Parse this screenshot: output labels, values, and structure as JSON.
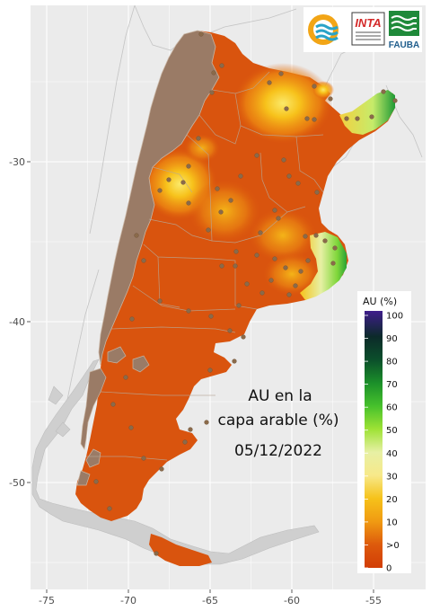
{
  "map": {
    "annotation": [
      "AU en la",
      "capa arable (%)",
      "05/12/2022"
    ],
    "axes": {
      "x_ticks": [
        "-75",
        "-70",
        "-65",
        "-60",
        "-55"
      ],
      "y_ticks": [
        "-30",
        "-40",
        "-50"
      ]
    },
    "background_color": "#ebebeb",
    "grid_color": "#ffffff"
  },
  "legend": {
    "title": "AU (%)",
    "labels": [
      "100",
      "90",
      "80",
      "70",
      "60",
      "50",
      "40",
      "30",
      "20",
      "10",
      ">0",
      "0"
    ],
    "colors": [
      "#3f1d8c",
      "#0c2a2a",
      "#0b4f2b",
      "#1b8f2a",
      "#46c12c",
      "#9ee235",
      "#e7f0a4",
      "#f7e98a",
      "#f6c21a",
      "#f09a12",
      "#dd5a0c",
      "#d23d06"
    ]
  },
  "logos": {
    "inta_label": "INTA",
    "fauba_label": "FAUBA"
  },
  "colors": {
    "dry": "#d9540e",
    "mountain": "#9a7b66",
    "neighbor_land": "#c8c8c8",
    "station": "#8a6a4a"
  },
  "chart_data": {
    "type": "heatmap",
    "title": "AU en la capa arable (%)",
    "date": "05/12/2022",
    "legend_title": "AU (%)",
    "scale_breaks": [
      "0",
      ">0",
      "10",
      "20",
      "30",
      "40",
      "50",
      "60",
      "70",
      "80",
      "90",
      "100"
    ],
    "x_ticks": [
      -75,
      -70,
      -65,
      -60,
      -55
    ],
    "y_ticks": [
      -30,
      -40,
      -50
    ],
    "xlim": [
      -76.5,
      -52.2
    ],
    "ylim": [
      -56.5,
      -21
    ]
  }
}
